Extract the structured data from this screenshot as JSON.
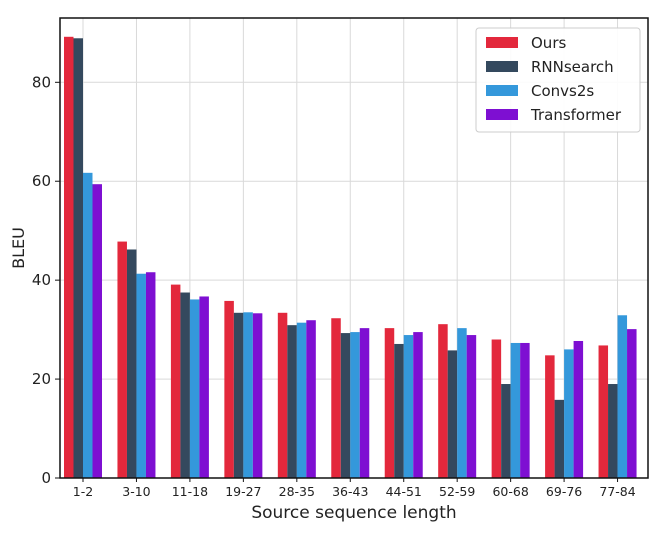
{
  "chart_data": {
    "type": "bar",
    "xlabel": "Source sequence length",
    "ylabel": "BLEU",
    "ylim": [
      0,
      93
    ],
    "yticks": [
      0,
      20,
      40,
      60,
      80
    ],
    "grid": true,
    "legend_position": "top-right",
    "categories": [
      "1-2",
      "3-10",
      "11-18",
      "19-27",
      "28-35",
      "36-43",
      "44-51",
      "52-59",
      "60-68",
      "69-76",
      "77-84"
    ],
    "series": [
      {
        "name": "Ours",
        "color": "#e3283c",
        "values": [
          89.2,
          47.8,
          39.1,
          35.8,
          33.4,
          32.3,
          30.3,
          31.1,
          28.0,
          24.8,
          26.8
        ]
      },
      {
        "name": "RNNsearch",
        "color": "#34495e",
        "values": [
          88.9,
          46.2,
          37.5,
          33.4,
          30.9,
          29.3,
          27.1,
          25.8,
          19.0,
          15.8,
          19.0
        ]
      },
      {
        "name": "Convs2s",
        "color": "#3498db",
        "values": [
          61.7,
          41.3,
          36.1,
          33.5,
          31.4,
          29.5,
          28.9,
          30.3,
          27.3,
          26.0,
          32.9
        ]
      },
      {
        "name": "Transformer",
        "color": "#7e0fd2",
        "values": [
          59.4,
          41.6,
          36.7,
          33.3,
          31.9,
          30.3,
          29.5,
          28.9,
          27.3,
          27.7,
          30.1
        ]
      }
    ]
  }
}
